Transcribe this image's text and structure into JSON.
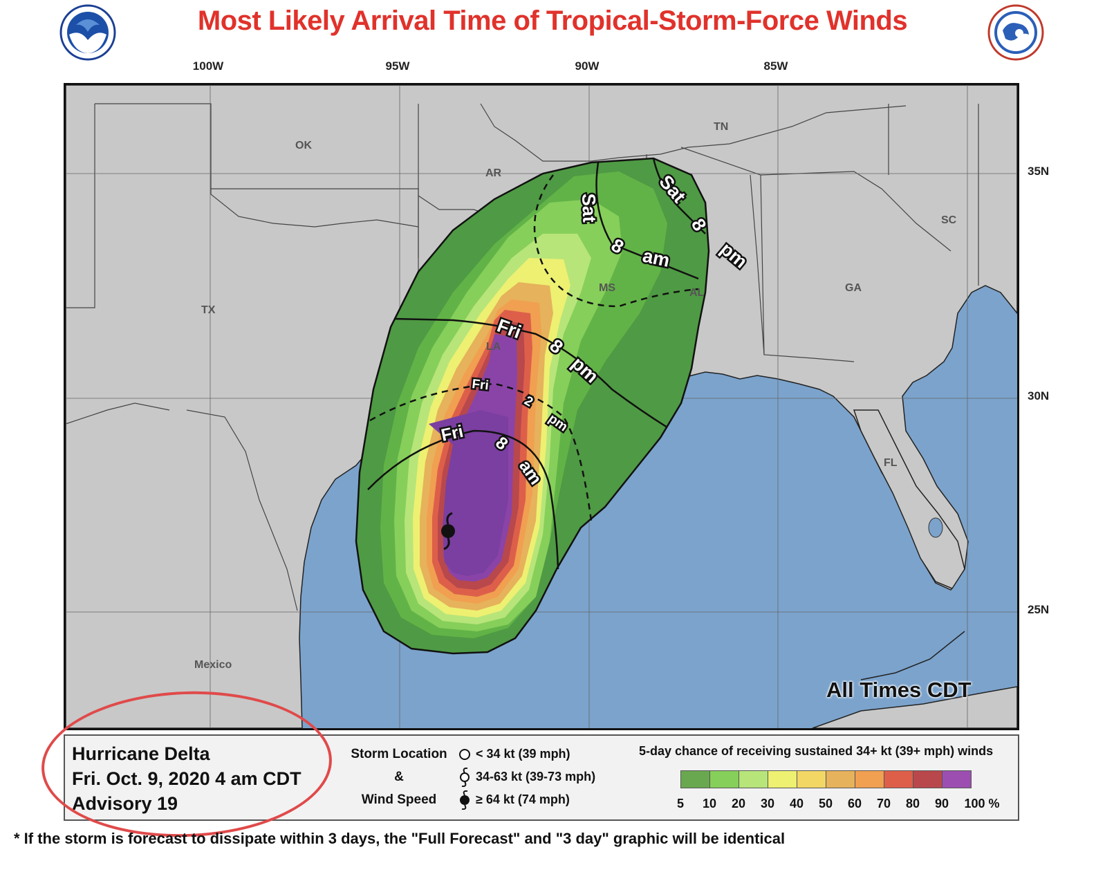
{
  "title": "Most Likely Arrival Time of Tropical-Storm-Force Winds",
  "longitude_labels": [
    "100W",
    "95W",
    "90W",
    "85W"
  ],
  "latitude_labels": [
    "35N",
    "30N",
    "25N"
  ],
  "state_labels": {
    "OK": "OK",
    "AR": "AR",
    "TN": "TN",
    "TX": "TX",
    "LA": "LA",
    "MS": "MS",
    "AL": "AL",
    "GA": "GA",
    "SC": "SC",
    "FL": "FL",
    "MX": "Mexico"
  },
  "time_labels": {
    "fri_8am": [
      "Fri",
      "8",
      "am"
    ],
    "fri_2pm": [
      "Fri",
      "2",
      "pm"
    ],
    "fri_8pm": [
      "Fri",
      "8",
      "pm"
    ],
    "sat_8am": [
      "Sat",
      "8",
      "am"
    ],
    "sat_8pm": [
      "Sat",
      "8",
      "pm"
    ]
  },
  "all_times": "All Times CDT",
  "storm": {
    "name": "Hurricane Delta",
    "date": "Fri. Oct. 9, 2020  4 am CDT",
    "advisory": "Advisory 19"
  },
  "storm_location_legend": {
    "line1": "Storm Location",
    "line2": "&",
    "line3": "Wind Speed",
    "rows": [
      "< 34 kt (39 mph)",
      "34-63 kt (39-73 mph)",
      "≥ 64 kt (74 mph)"
    ]
  },
  "chance_legend": {
    "title": "5-day chance of receiving sustained 34+ kt (39+ mph) winds",
    "colors": [
      "#6aa84f",
      "#86cf5a",
      "#b7e57a",
      "#eef071",
      "#f2d765",
      "#e6b25b",
      "#f0a050",
      "#dd5f4a",
      "#b8484c",
      "#9c4fb0"
    ],
    "ticks": [
      "5",
      "10",
      "20",
      "30",
      "40",
      "50",
      "60",
      "70",
      "80",
      "90",
      "100 %"
    ]
  },
  "footnote": "* If the storm is forecast to dissipate within 3 days, the \"Full Forecast\" and \"3 day\" graphic will be identical",
  "colors": {
    "title": "#e0322b",
    "land": "#c8c8c8",
    "water": "#7ba3cc",
    "annotation_circle": "#e04a4a"
  }
}
